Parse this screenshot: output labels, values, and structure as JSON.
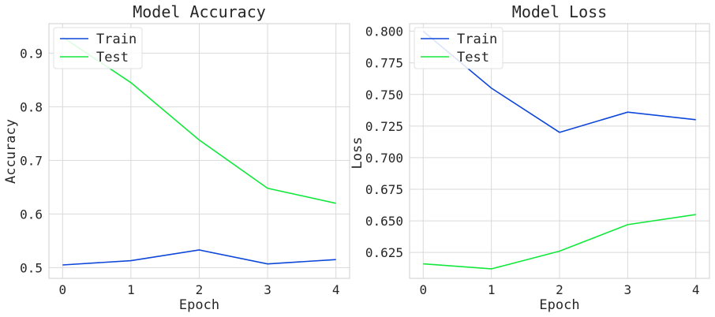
{
  "chart_data": [
    {
      "type": "line",
      "title": "Model Accuracy",
      "xlabel": "Epoch",
      "ylabel": "Accuracy",
      "x": [
        0,
        1,
        2,
        3,
        4
      ],
      "xticks": [
        0,
        1,
        2,
        3,
        4
      ],
      "xlim": [
        -0.2,
        4.2
      ],
      "yticks": [
        0.5,
        0.6,
        0.7,
        0.8,
        0.9
      ],
      "ytick_labels": [
        "0.5",
        "0.6",
        "0.7",
        "0.8",
        "0.9"
      ],
      "ylim": [
        0.48,
        0.955
      ],
      "grid": true,
      "legend_position": "upper-left",
      "series": [
        {
          "name": "Train",
          "color": "#0d47d9",
          "values": [
            0.505,
            0.513,
            0.533,
            0.507,
            0.515
          ]
        },
        {
          "name": "Test",
          "color": "#12e83c",
          "values": [
            0.93,
            0.845,
            0.738,
            0.648,
            0.62
          ]
        }
      ]
    },
    {
      "type": "line",
      "title": "Model Loss",
      "xlabel": "Epoch",
      "ylabel": "Loss",
      "x": [
        0,
        1,
        2,
        3,
        4
      ],
      "xticks": [
        0,
        1,
        2,
        3,
        4
      ],
      "xlim": [
        -0.2,
        4.2
      ],
      "yticks": [
        0.625,
        0.65,
        0.675,
        0.7,
        0.725,
        0.75,
        0.775,
        0.8
      ],
      "ytick_labels": [
        "0.625",
        "0.650",
        "0.675",
        "0.700",
        "0.725",
        "0.750",
        "0.775",
        "0.800"
      ],
      "ylim": [
        0.6045,
        0.806
      ],
      "grid": true,
      "legend_position": "upper-left",
      "series": [
        {
          "name": "Train",
          "color": "#0d47d9",
          "values": [
            0.8,
            0.755,
            0.72,
            0.736,
            0.73
          ]
        },
        {
          "name": "Test",
          "color": "#12e83c",
          "values": [
            0.616,
            0.612,
            0.626,
            0.647,
            0.655
          ]
        }
      ]
    }
  ]
}
